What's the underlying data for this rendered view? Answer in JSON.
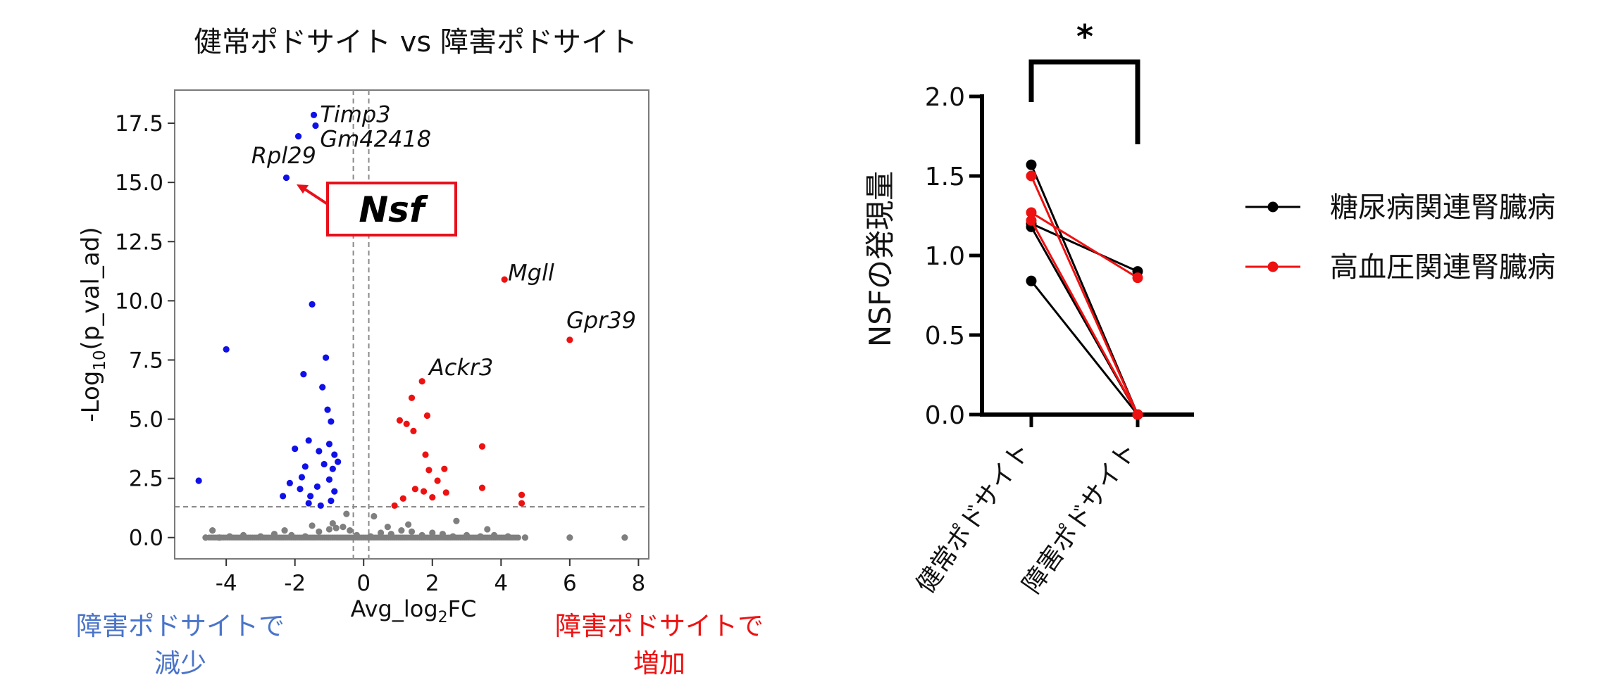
{
  "chart_data": [
    {
      "type": "scatter",
      "title": "健常ポドサイト vs 障害ポドサイト",
      "xlabel": "Avg_log₂FC",
      "ylabel": "-Log₁₀(p_val_ad)",
      "xlim": [
        -5.5,
        8.3
      ],
      "ylim": [
        -0.9,
        18.9
      ],
      "xticks": [
        -4,
        -2,
        0,
        2,
        4,
        6,
        8
      ],
      "yticks": [
        0.0,
        2.5,
        5.0,
        7.5,
        10.0,
        12.5,
        15.0,
        17.5
      ],
      "thresholds": {
        "fc": [
          -0.3,
          0.15
        ],
        "p": 1.3
      },
      "colors": {
        "down": "#1010e8",
        "up": "#ee1111",
        "ns": "#7f7f7f",
        "box": "#e8101a"
      },
      "highlight": "Nsf",
      "annotations": [
        {
          "text": "Timp3",
          "x": -1.27,
          "y": 17.85
        },
        {
          "text": "Gm42418",
          "x": -1.27,
          "y": 16.8
        },
        {
          "text": "Rpl29",
          "x": -3.27,
          "y": 16.1
        },
        {
          "text": "Mgll",
          "x": 4.2,
          "y": 11.15
        },
        {
          "text": "Gpr39",
          "x": 5.9,
          "y": 9.15
        },
        {
          "text": "Ackr3",
          "x": 1.9,
          "y": 7.15
        }
      ],
      "side_labels": {
        "down": [
          "障害ポドサイトで",
          "減少"
        ],
        "up": [
          "障害ポドサイトで",
          "増加"
        ]
      },
      "series": [
        {
          "group": "down",
          "points": [
            [
              -1.45,
              17.85
            ],
            [
              -1.4,
              17.4
            ],
            [
              -1.9,
              16.95
            ],
            [
              -2.25,
              15.2
            ],
            [
              -4.0,
              7.95
            ],
            [
              -1.5,
              9.85
            ],
            [
              -1.1,
              7.6
            ],
            [
              -1.75,
              6.9
            ],
            [
              -1.2,
              6.35
            ],
            [
              -1.05,
              5.4
            ],
            [
              -0.95,
              4.9
            ],
            [
              -4.8,
              2.4
            ],
            [
              -2.0,
              3.75
            ],
            [
              -1.6,
              4.1
            ],
            [
              -1.3,
              3.65
            ],
            [
              -1.0,
              3.95
            ],
            [
              -0.85,
              3.5
            ],
            [
              -1.7,
              3.0
            ],
            [
              -1.15,
              3.1
            ],
            [
              -0.9,
              2.9
            ],
            [
              -2.35,
              1.75
            ],
            [
              -2.15,
              2.3
            ],
            [
              -1.85,
              2.05
            ],
            [
              -1.55,
              1.75
            ],
            [
              -1.35,
              2.15
            ],
            [
              -1.0,
              2.45
            ],
            [
              -0.85,
              1.95
            ],
            [
              -0.95,
              1.55
            ],
            [
              -1.25,
              1.35
            ],
            [
              -1.6,
              1.45
            ],
            [
              -1.8,
              2.55
            ],
            [
              -0.75,
              3.2
            ]
          ]
        },
        {
          "group": "up",
          "points": [
            [
              4.1,
              10.9
            ],
            [
              6.0,
              8.35
            ],
            [
              1.7,
              6.6
            ],
            [
              1.4,
              5.9
            ],
            [
              1.85,
              5.15
            ],
            [
              1.25,
              4.8
            ],
            [
              1.05,
              4.95
            ],
            [
              1.45,
              4.5
            ],
            [
              1.8,
              3.5
            ],
            [
              3.45,
              3.85
            ],
            [
              2.35,
              2.9
            ],
            [
              1.9,
              2.85
            ],
            [
              1.5,
              2.05
            ],
            [
              2.15,
              2.4
            ],
            [
              2.4,
              1.9
            ],
            [
              2.0,
              1.7
            ],
            [
              1.75,
              1.95
            ],
            [
              3.45,
              2.1
            ],
            [
              4.6,
              1.8
            ],
            [
              4.6,
              1.45
            ],
            [
              1.15,
              1.65
            ],
            [
              0.9,
              1.35
            ]
          ]
        },
        {
          "group": "ns",
          "points": [
            [
              -4.4,
              0.3
            ],
            [
              -4.6,
              0.0
            ],
            [
              -4.2,
              0.0
            ],
            [
              -3.9,
              0.05
            ],
            [
              -3.5,
              0.1
            ],
            [
              -3.0,
              0.05
            ],
            [
              -2.6,
              0.15
            ],
            [
              -2.1,
              0.1
            ],
            [
              -1.7,
              0.05
            ],
            [
              -1.3,
              0.25
            ],
            [
              -1.0,
              0.35
            ],
            [
              -0.8,
              0.4
            ],
            [
              -0.6,
              0.45
            ],
            [
              -0.4,
              0.3
            ],
            [
              -0.2,
              0.1
            ],
            [
              0.2,
              0.05
            ],
            [
              0.5,
              0.2
            ],
            [
              0.8,
              0.15
            ],
            [
              1.1,
              0.3
            ],
            [
              1.4,
              0.25
            ],
            [
              1.7,
              0.1
            ],
            [
              2.0,
              0.2
            ],
            [
              2.3,
              0.15
            ],
            [
              2.6,
              0.05
            ],
            [
              3.0,
              0.1
            ],
            [
              3.4,
              0.05
            ],
            [
              3.8,
              0.1
            ],
            [
              4.2,
              0.05
            ],
            [
              4.7,
              0.0
            ],
            [
              6.0,
              0.0
            ],
            [
              7.6,
              0.0
            ],
            [
              -0.5,
              1.0
            ],
            [
              0.3,
              0.9
            ],
            [
              -0.9,
              0.6
            ],
            [
              1.3,
              0.55
            ],
            [
              2.7,
              0.7
            ],
            [
              -1.5,
              0.5
            ],
            [
              0.7,
              0.45
            ],
            [
              3.6,
              0.35
            ],
            [
              -2.3,
              0.3
            ]
          ]
        }
      ]
    },
    {
      "type": "line",
      "ylabel": "NSFの発現量",
      "categories": [
        "健常ポドサイト",
        "障害ポドサイト"
      ],
      "ylim": [
        0,
        2.0
      ],
      "yticks": [
        "0.0",
        "0.5",
        "1.0",
        "1.5",
        "2.0"
      ],
      "significance": "*",
      "legend_position": "right",
      "series": [
        {
          "name": "糖尿病関連腎臓病",
          "color": "#000000",
          "pairs": [
            [
              1.57,
              0.0
            ],
            [
              1.2,
              0.9
            ],
            [
              1.18,
              0.0
            ],
            [
              0.84,
              0.0
            ]
          ]
        },
        {
          "name": "高血圧関連腎臓病",
          "color": "#ee1111",
          "pairs": [
            [
              1.5,
              0.0
            ],
            [
              1.27,
              0.86
            ],
            [
              1.22,
              0.0
            ]
          ]
        }
      ]
    }
  ]
}
